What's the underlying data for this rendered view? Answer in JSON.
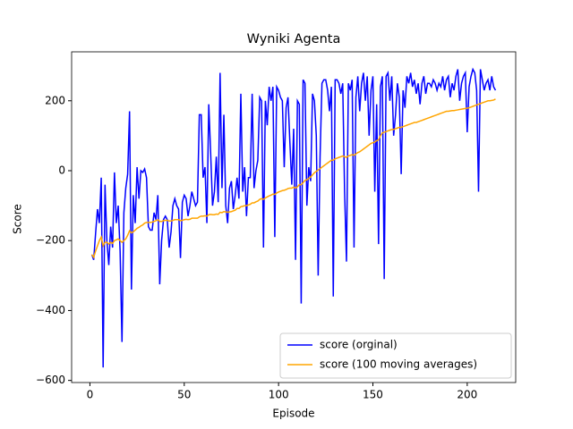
{
  "chart_data": {
    "type": "line",
    "title": "Wyniki Agenta",
    "x_label": "Episode",
    "y_label": "Score",
    "x": [
      1,
      2,
      3,
      4,
      5,
      6,
      7,
      8,
      9,
      10,
      11,
      12,
      13,
      14,
      15,
      16,
      17,
      18,
      19,
      20,
      21,
      22,
      23,
      24,
      25,
      26,
      27,
      28,
      29,
      30,
      31,
      32,
      33,
      34,
      35,
      36,
      37,
      38,
      39,
      40,
      41,
      42,
      43,
      44,
      45,
      46,
      47,
      48,
      49,
      50,
      51,
      52,
      53,
      54,
      55,
      56,
      57,
      58,
      59,
      60,
      61,
      62,
      63,
      64,
      65,
      66,
      67,
      68,
      69,
      70,
      71,
      72,
      73,
      74,
      75,
      76,
      77,
      78,
      79,
      80,
      81,
      82,
      83,
      84,
      85,
      86,
      87,
      88,
      89,
      90,
      91,
      92,
      93,
      94,
      95,
      96,
      97,
      98,
      99,
      100,
      101,
      102,
      103,
      104,
      105,
      106,
      107,
      108,
      109,
      110,
      111,
      112,
      113,
      114,
      115,
      116,
      117,
      118,
      119,
      120,
      121,
      122,
      123,
      124,
      125,
      126,
      127,
      128,
      129,
      130,
      131,
      132,
      133,
      134,
      135,
      136,
      137,
      138,
      139,
      140,
      141,
      142,
      143,
      144,
      145,
      146,
      147,
      148,
      149,
      150,
      151,
      152,
      153,
      154,
      155,
      156,
      157,
      158,
      159,
      160,
      161,
      162,
      163,
      164,
      165,
      166,
      167,
      168,
      169,
      170,
      171,
      172,
      173,
      174,
      175,
      176,
      177,
      178,
      179,
      180,
      181,
      182,
      183,
      184,
      185,
      186,
      187,
      188,
      189,
      190,
      191,
      192,
      193,
      194,
      195,
      196,
      197,
      198,
      199,
      200,
      201,
      202,
      203,
      204,
      205,
      206,
      207,
      208,
      209,
      210,
      211,
      212,
      213,
      214,
      215
    ],
    "series": [
      {
        "name": "score (orginal)",
        "color": "#0000ff",
        "values": [
          -240,
          -255,
          -180,
          -110,
          -150,
          -20,
          -563,
          -40,
          -200,
          -270,
          -160,
          -220,
          -5,
          -150,
          -100,
          -230,
          -490,
          -120,
          -50,
          -10,
          170,
          -340,
          -70,
          -150,
          10,
          -80,
          0,
          -5,
          5,
          -20,
          -160,
          -170,
          -170,
          -120,
          -140,
          -70,
          -325,
          -200,
          -140,
          -130,
          -140,
          -220,
          -175,
          -100,
          -80,
          -100,
          -110,
          -250,
          -90,
          -70,
          -80,
          -130,
          -100,
          -60,
          -80,
          -100,
          -90,
          160,
          160,
          -20,
          10,
          -150,
          190,
          50,
          -100,
          -60,
          40,
          -90,
          280,
          -50,
          160,
          -100,
          -150,
          -50,
          -30,
          -110,
          -70,
          -20,
          -80,
          220,
          -60,
          10,
          -130,
          -20,
          -20,
          220,
          -50,
          0,
          30,
          210,
          200,
          -220,
          200,
          130,
          240,
          200,
          240,
          -190,
          240,
          230,
          210,
          200,
          10,
          180,
          210,
          80,
          -40,
          120,
          -255,
          200,
          190,
          -380,
          260,
          250,
          -100,
          10,
          -30,
          220,
          200,
          100,
          -300,
          40,
          250,
          260,
          260,
          230,
          170,
          240,
          -360,
          260,
          260,
          250,
          220,
          250,
          -60,
          -260,
          250,
          230,
          260,
          -220,
          210,
          270,
          170,
          250,
          280,
          200,
          270,
          100,
          230,
          270,
          -60,
          190,
          -210,
          240,
          270,
          -310,
          270,
          280,
          200,
          270,
          100,
          160,
          250,
          210,
          -10,
          230,
          180,
          270,
          250,
          280,
          240,
          260,
          220,
          250,
          190,
          250,
          270,
          220,
          250,
          250,
          240,
          260,
          250,
          230,
          250,
          240,
          270,
          230,
          260,
          270,
          210,
          250,
          230,
          270,
          290,
          200,
          250,
          270,
          280,
          110,
          240,
          270,
          290,
          280,
          230,
          -60,
          290,
          260,
          230,
          250,
          260,
          230,
          270,
          240,
          230
        ]
      },
      {
        "name": "score (100 moving averages)",
        "color": "#ffa500",
        "values": [
          -240,
          -248,
          -230,
          -215,
          -200,
          -190,
          -215,
          -205,
          -205,
          -210,
          -205,
          -208,
          -200,
          -198,
          -195,
          -200,
          -205,
          -200,
          -195,
          -185,
          -172,
          -178,
          -175,
          -170,
          -165,
          -162,
          -158,
          -155,
          -150,
          -148,
          -148,
          -148,
          -147,
          -145,
          -143,
          -140,
          -145,
          -145,
          -143,
          -142,
          -142,
          -144,
          -144,
          -142,
          -140,
          -140,
          -140,
          -143,
          -142,
          -140,
          -139,
          -140,
          -139,
          -136,
          -136,
          -136,
          -136,
          -132,
          -130,
          -130,
          -129,
          -130,
          -126,
          -125,
          -126,
          -126,
          -124,
          -125,
          -119,
          -120,
          -117,
          -118,
          -119,
          -118,
          -117,
          -115,
          -113,
          -108,
          -108,
          -103,
          -102,
          -100,
          -100,
          -98,
          -96,
          -92,
          -92,
          -89,
          -87,
          -82,
          -80,
          -82,
          -78,
          -75,
          -72,
          -70,
          -67,
          -68,
          -64,
          -61,
          -59,
          -57,
          -56,
          -54,
          -51,
          -50,
          -50,
          -47,
          -50,
          -46,
          -40,
          -40,
          -34,
          -28,
          -26,
          -22,
          -18,
          -12,
          -6,
          -2,
          2,
          6,
          10,
          14,
          18,
          22,
          26,
          30,
          30,
          34,
          36,
          38,
          40,
          42,
          40,
          38,
          42,
          44,
          46,
          44,
          48,
          52,
          54,
          58,
          62,
          66,
          70,
          74,
          78,
          80,
          82,
          86,
          88,
          100,
          108,
          110,
          112,
          114,
          116,
          118,
          118,
          120,
          122,
          124,
          124,
          126,
          128,
          130,
          132,
          134,
          136,
          138,
          138,
          140,
          142,
          144,
          146,
          148,
          150,
          152,
          154,
          156,
          158,
          160,
          162,
          164,
          166,
          168,
          170,
          170,
          171,
          172,
          172,
          173,
          174,
          175,
          176,
          177,
          178,
          179,
          180,
          182,
          184,
          186,
          188,
          190,
          192,
          194,
          196,
          198,
          200,
          200,
          201,
          202,
          205
        ]
      }
    ],
    "xlim": [
      -9.7,
      225.7
    ],
    "ylim": [
      -606,
      340
    ],
    "xticks": [
      0,
      50,
      100,
      150,
      200
    ],
    "yticks": [
      {
        "value": -600,
        "label": "−600"
      },
      {
        "value": -400,
        "label": "−400"
      },
      {
        "value": -200,
        "label": "−200"
      },
      0,
      200
    ],
    "legend": "lower right"
  }
}
